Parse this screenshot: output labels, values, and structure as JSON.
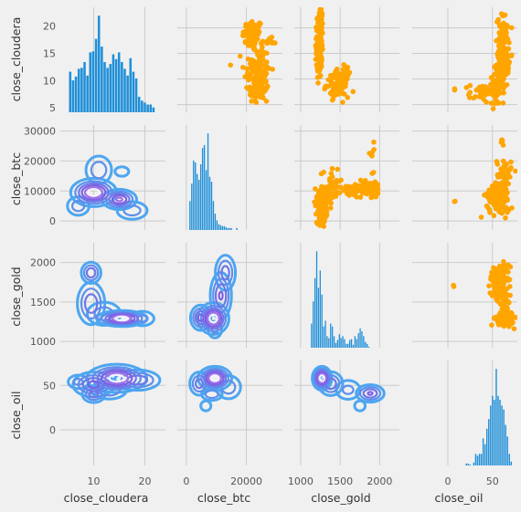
{
  "chart_data": {
    "type": "pairgrid",
    "variables": [
      "close_cloudera",
      "close_btc",
      "close_gold",
      "close_oil"
    ],
    "colors": {
      "hist": "#1f8fd8",
      "scatter": "#ffa500",
      "kde_outer": "#4da6f0",
      "kde_inner": "#8a4fe0",
      "kde_core": "#f2f2ff",
      "background": "#f0f0f0",
      "grid": "#cbcbcb"
    },
    "grid": true,
    "axes": {
      "close_cloudera": {
        "lim": [
          3.5,
          24
        ],
        "ticks": [
          10,
          20
        ],
        "tick_labels": [
          "10",
          "20"
        ],
        "y_ticks": [
          5,
          10,
          15,
          20
        ],
        "y_tick_labels": [
          "5",
          "10",
          "15",
          "20"
        ]
      },
      "close_btc": {
        "lim": [
          -3000,
          32000
        ],
        "ticks": [
          0,
          20000
        ],
        "tick_labels": [
          "0",
          "20000"
        ],
        "y_ticks": [
          0,
          10000,
          20000,
          30000
        ],
        "y_tick_labels": [
          "0",
          "10000",
          "20000",
          "30000"
        ]
      },
      "close_gold": {
        "lim": [
          920,
          2250
        ],
        "ticks": [
          1000,
          1500,
          2000
        ],
        "tick_labels": [
          "1000",
          "1500",
          "2000"
        ],
        "y_ticks": [
          1000,
          1500,
          2000
        ],
        "y_tick_labels": [
          "1000",
          "1500",
          "2000"
        ]
      },
      "close_oil": {
        "lim": [
          -40,
          78
        ],
        "ticks": [
          0,
          50
        ],
        "tick_labels": [
          "0",
          "50"
        ],
        "y_ticks": [
          0,
          50
        ],
        "y_tick_labels": [
          "0",
          "50"
        ]
      }
    },
    "histograms": {
      "close_cloudera": {
        "x_start": 5.2,
        "bin_width": 0.56,
        "counts": [
          0.42,
          0.33,
          0.37,
          0.45,
          0.46,
          0.52,
          0.38,
          0.62,
          0.63,
          0.76,
          1.0,
          0.68,
          0.52,
          0.46,
          0.5,
          0.6,
          0.55,
          0.62,
          0.52,
          0.45,
          0.38,
          0.56,
          0.42,
          0.35,
          0.16,
          0.12,
          0.1,
          0.08,
          0.08,
          0.05
        ]
      },
      "close_btc": {
        "x_start": 1000,
        "bin_width": 600,
        "counts": [
          0.3,
          0.48,
          0.72,
          0.7,
          0.58,
          0.52,
          0.68,
          0.85,
          0.88,
          0.62,
          1.0,
          0.55,
          0.5,
          0.3,
          0.17,
          0.1,
          0.06,
          0.05,
          0.04,
          0.04,
          0.03,
          0.02,
          0.02,
          0.02,
          0,
          0,
          0.02
        ]
      },
      "close_gold": {
        "x_start": 1130,
        "bin_width": 22,
        "counts": [
          0.25,
          0.48,
          0.72,
          1.0,
          0.62,
          0.8,
          0.55,
          0.22,
          0.28,
          0.12,
          0.1,
          0.25,
          0.22,
          0.12,
          0.05,
          0.08,
          0.14,
          0.1,
          0.12,
          0.09,
          0.04,
          0.04,
          0.08,
          0.09,
          0.03,
          0.12,
          0.09,
          0.15,
          0.2,
          0.17,
          0.12,
          0.06,
          0.04,
          0.01
        ]
      },
      "close_oil": {
        "x_start": 20,
        "bin_width": 2.1,
        "counts": [
          0.02,
          0.02,
          0.01,
          0,
          0.03,
          0.12,
          0.1,
          0.12,
          0.12,
          0.28,
          0.22,
          0.38,
          0.48,
          0.62,
          0.72,
          0.68,
          1.0,
          0.72,
          0.68,
          0.62,
          0.58,
          0.42,
          0.3,
          0.12,
          0.04
        ]
      }
    },
    "scatter_clusters": {
      "close_cloudera": {
        "close_btc": [
          {
            "cx": 22100,
            "cy": 18.5,
            "sx": 1700,
            "sy": 1.6,
            "n": 70
          },
          {
            "cx": 23600,
            "cy": 11.5,
            "sx": 2200,
            "sy": 2.6,
            "n": 100
          },
          {
            "cx": 24300,
            "cy": 7.2,
            "sx": 1700,
            "sy": 1.1,
            "n": 40
          },
          {
            "cx": 27300,
            "cy": 17.2,
            "sx": 1300,
            "sy": 0.4,
            "n": 15
          }
        ],
        "close_gold": [
          {
            "cx": 1235,
            "cy": 16.4,
            "sx": 18,
            "sy": 3.1,
            "n": 130
          },
          {
            "cx": 1255,
            "cy": 21.6,
            "sx": 12,
            "sy": 0.9,
            "n": 22
          },
          {
            "cx": 1468,
            "cy": 8.9,
            "sx": 70,
            "sy": 1.2,
            "n": 85
          },
          {
            "cx": 1570,
            "cy": 11.5,
            "sx": 35,
            "sy": 0.7,
            "n": 20
          }
        ],
        "close_oil": [
          {
            "cx": 62,
            "cy": 15.2,
            "sx": 3.2,
            "sy": 3.6,
            "n": 170
          },
          {
            "cx": 40,
            "cy": 7.2,
            "sx": 8,
            "sy": 1.0,
            "n": 45
          },
          {
            "cx": 54,
            "cy": 9,
            "sx": 4,
            "sy": 2.3,
            "n": 35
          },
          {
            "cx": 8,
            "cy": 7.8,
            "sx": 0.8,
            "sy": 0.2,
            "n": 2
          }
        ]
      },
      "close_btc": {
        "close_gold": [
          {
            "cx": 1265,
            "cy": 3200,
            "sx": 30,
            "sy": 1900,
            "n": 130
          },
          {
            "cx": 1310,
            "cy": 8200,
            "sx": 55,
            "sy": 1900,
            "n": 65
          },
          {
            "cx": 1400,
            "cy": 14500,
            "sx": 85,
            "sy": 2000,
            "n": 18
          },
          {
            "cx": 1620,
            "cy": 9800,
            "sx": 95,
            "sy": 1000,
            "n": 45
          },
          {
            "cx": 1860,
            "cy": 10500,
            "sx": 85,
            "sy": 1500,
            "n": 55
          },
          {
            "cx": 1960,
            "cy": 11600,
            "sx": 30,
            "sy": 700,
            "n": 15
          },
          {
            "cx": 1910,
            "cy": 21500,
            "sx": 30,
            "sy": 3500,
            "n": 7
          }
        ],
        "close_oil": [
          {
            "cx": 57,
            "cy": 8900,
            "sx": 6,
            "sy": 1800,
            "n": 140
          },
          {
            "cx": 63,
            "cy": 15500,
            "sx": 4,
            "sy": 2700,
            "n": 45
          },
          {
            "cx": 60,
            "cy": 3800,
            "sx": 7,
            "sy": 1200,
            "n": 22
          },
          {
            "cx": 62,
            "cy": 26000,
            "sx": 1.5,
            "sy": 900,
            "n": 5
          },
          {
            "cx": 8,
            "cy": 6800,
            "sx": 0.6,
            "sy": 250,
            "n": 2
          }
        ]
      },
      "close_gold": {
        "close_oil": [
          {
            "cx": 57,
            "cy": 1785,
            "sx": 5.5,
            "sy": 70,
            "n": 85
          },
          {
            "cx": 61,
            "cy": 1530,
            "sx": 5,
            "sy": 80,
            "n": 55
          },
          {
            "cx": 64,
            "cy": 1290,
            "sx": 5,
            "sy": 45,
            "n": 95
          },
          {
            "cx": 63,
            "cy": 1950,
            "sx": 2.5,
            "sy": 55,
            "n": 14
          },
          {
            "cx": 7,
            "cy": 1700,
            "sx": 0.5,
            "sy": 8,
            "n": 2
          }
        ]
      }
    },
    "kde_modes": {
      "close_btc": {
        "close_cloudera": [
          {
            "cx": 10,
            "cy": 9500,
            "sx": 2.0,
            "sy": 2100,
            "w": 1.0
          },
          {
            "cx": 15,
            "cy": 7200,
            "sx": 1.6,
            "sy": 1600,
            "w": 0.75
          },
          {
            "cx": 11,
            "cy": 17000,
            "sx": 1.5,
            "sy": 2800,
            "w": 0.32
          },
          {
            "cx": 7,
            "cy": 5000,
            "sx": 1.3,
            "sy": 1900,
            "w": 0.3
          },
          {
            "cx": 17.5,
            "cy": 3500,
            "sx": 1.8,
            "sy": 1800,
            "w": 0.3
          },
          {
            "cx": 15.5,
            "cy": 16500,
            "sx": 1.2,
            "sy": 1400,
            "w": 0.15
          }
        ]
      },
      "close_gold": {
        "close_cloudera": [
          {
            "cx": 15.5,
            "cy": 1290,
            "sx": 2.2,
            "sy": 45,
            "w": 1.0
          },
          {
            "cx": 9.5,
            "cy": 1480,
            "sx": 1.4,
            "sy": 140,
            "w": 0.5
          },
          {
            "cx": 9.5,
            "cy": 1870,
            "sx": 1.0,
            "sy": 70,
            "w": 0.5
          },
          {
            "cx": 12,
            "cy": 1350,
            "sx": 2.0,
            "sy": 90,
            "w": 0.3
          },
          {
            "cx": 19.5,
            "cy": 1290,
            "sx": 1.5,
            "sy": 60,
            "w": 0.25
          }
        ],
        "close_btc": [
          {
            "cx": 9000,
            "cy": 1290,
            "sx": 2300,
            "sy": 90,
            "w": 1.0
          },
          {
            "cx": 4800,
            "cy": 1300,
            "sx": 1700,
            "sy": 80,
            "w": 0.6
          },
          {
            "cx": 11500,
            "cy": 1580,
            "sx": 1800,
            "sy": 150,
            "w": 0.55
          },
          {
            "cx": 13000,
            "cy": 1870,
            "sx": 1800,
            "sy": 120,
            "w": 0.45
          },
          {
            "cx": 9500,
            "cy": 1150,
            "sx": 1500,
            "sy": 70,
            "w": 0.25
          }
        ]
      },
      "close_oil": {
        "close_cloudera": [
          {
            "cx": 14.5,
            "cy": 58,
            "sx": 2.6,
            "sy": 7,
            "w": 1.0
          },
          {
            "cx": 10,
            "cy": 51,
            "sx": 2.0,
            "sy": 7,
            "w": 0.6
          },
          {
            "cx": 10,
            "cy": 40,
            "sx": 1.2,
            "sy": 5,
            "w": 0.45
          },
          {
            "cx": 18.5,
            "cy": 56,
            "sx": 2.3,
            "sy": 6,
            "w": 0.5
          },
          {
            "cx": 7,
            "cy": 54,
            "sx": 1.3,
            "sy": 5,
            "w": 0.25
          },
          {
            "cx": 13,
            "cy": 45,
            "sx": 2.0,
            "sy": 6,
            "w": 0.35
          }
        ],
        "close_btc": [
          {
            "cx": 9500,
            "cy": 58,
            "sx": 2500,
            "sy": 6,
            "w": 1.0
          },
          {
            "cx": 4300,
            "cy": 52,
            "sx": 1700,
            "sy": 7,
            "w": 0.45
          },
          {
            "cx": 8500,
            "cy": 40,
            "sx": 2000,
            "sy": 4,
            "w": 0.35
          },
          {
            "cx": 14000,
            "cy": 48,
            "sx": 2500,
            "sy": 8,
            "w": 0.3
          },
          {
            "cx": 6500,
            "cy": 27,
            "sx": 1500,
            "sy": 5,
            "w": 0.15
          }
        ],
        "close_gold": [
          {
            "cx": 1270,
            "cy": 58,
            "sx": 55,
            "sy": 6,
            "w": 1.0
          },
          {
            "cx": 1380,
            "cy": 52,
            "sx": 80,
            "sy": 7,
            "w": 0.5
          },
          {
            "cx": 1880,
            "cy": 41,
            "sx": 90,
            "sy": 5,
            "w": 0.55
          },
          {
            "cx": 1600,
            "cy": 45,
            "sx": 100,
            "sy": 7,
            "w": 0.25
          },
          {
            "cx": 1750,
            "cy": 27,
            "sx": 60,
            "sy": 5,
            "w": 0.15
          }
        ]
      }
    }
  }
}
